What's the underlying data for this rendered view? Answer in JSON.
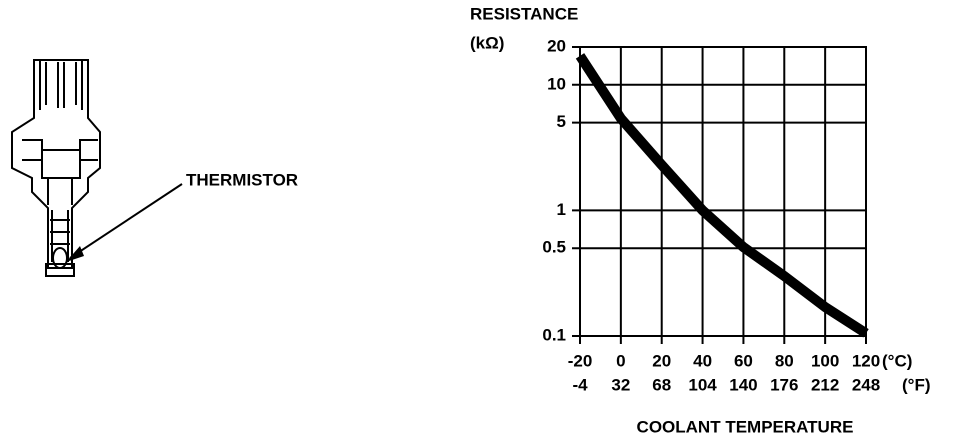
{
  "callout": {
    "label": "THERMISTOR"
  },
  "chart_data": {
    "type": "line",
    "ylabel": "RESISTANCE",
    "yunit": "(kΩ)",
    "xlabel": "COOLANT TEMPERATURE",
    "xunit": "(°C)",
    "x2unit": "(°F)",
    "x": [
      -20,
      0,
      20,
      40,
      60,
      80,
      100,
      120
    ],
    "series": [
      {
        "color": "#000000",
        "values": [
          17,
          5.4,
          2.3,
          1.0,
          0.51,
          0.3,
          0.17,
          0.105
        ]
      }
    ],
    "xlim": [
      -20,
      120
    ],
    "xticks": [
      -20,
      0,
      20,
      40,
      60,
      80,
      100,
      120
    ],
    "x2lim": [
      -4,
      248
    ],
    "x2ticks": [
      -4,
      32,
      68,
      104,
      140,
      176,
      212,
      248
    ],
    "ylim": [
      0.1,
      20
    ],
    "yticks": [
      0.1,
      0.5,
      1,
      5,
      10,
      20
    ],
    "log_y": true,
    "grid": true
  }
}
